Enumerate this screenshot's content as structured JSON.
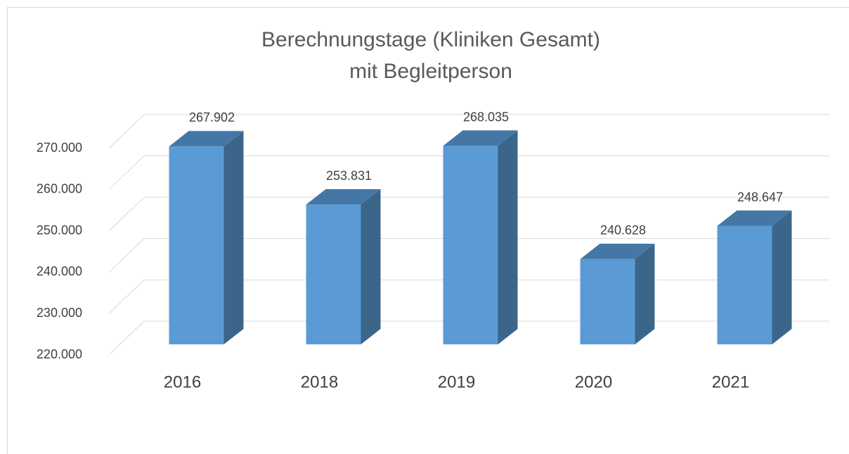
{
  "chart_data": {
    "type": "bar3d",
    "title": [
      "Berechnungstage (Kliniken Gesamt)",
      "mit Begleitperson"
    ],
    "categories": [
      "2016",
      "2018",
      "2019",
      "2020",
      "2021"
    ],
    "values": [
      267902,
      253831,
      268035,
      240628,
      248647
    ],
    "value_labels": [
      "267.902",
      "253.831",
      "268.035",
      "240.628",
      "248.647"
    ],
    "color": "#5b9bd5",
    "ylim": [
      220000,
      270000
    ],
    "yticks": [
      {
        "value": 220000,
        "label": "220.000"
      },
      {
        "value": 230000,
        "label": "230.000"
      },
      {
        "value": 240000,
        "label": "240.000"
      },
      {
        "value": 250000,
        "label": "250.000"
      },
      {
        "value": 260000,
        "label": "260.000"
      },
      {
        "value": 270000,
        "label": "270.000"
      }
    ],
    "grid": true
  }
}
